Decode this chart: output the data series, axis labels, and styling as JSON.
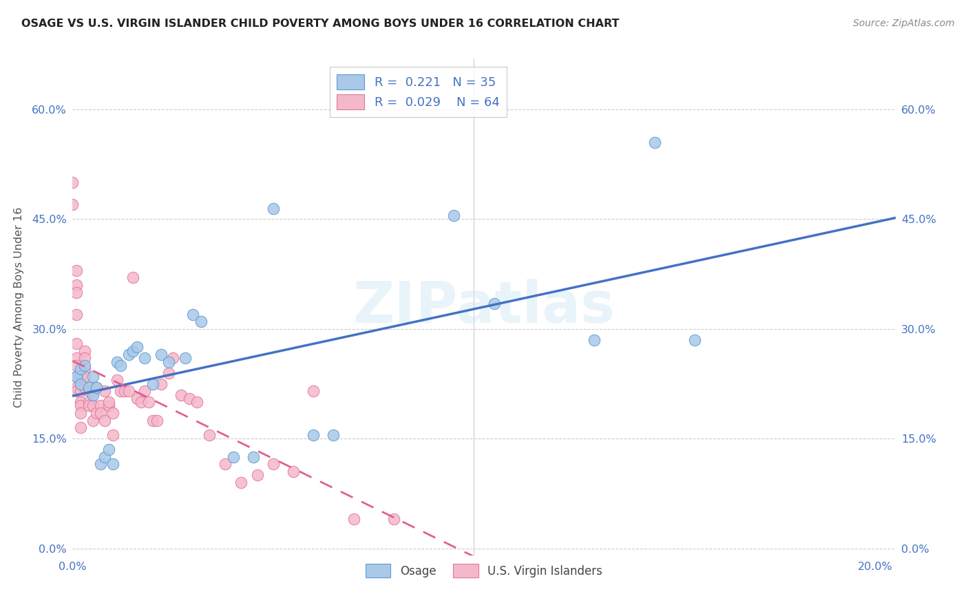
{
  "title": "OSAGE VS U.S. VIRGIN ISLANDER CHILD POVERTY AMONG BOYS UNDER 16 CORRELATION CHART",
  "source": "Source: ZipAtlas.com",
  "ylabel": "Child Poverty Among Boys Under 16",
  "xlim": [
    0.0,
    0.205
  ],
  "ylim": [
    -0.01,
    0.67
  ],
  "yticks": [
    0.0,
    0.15,
    0.3,
    0.45,
    0.6
  ],
  "ytick_labels": [
    "0.0%",
    "15.0%",
    "30.0%",
    "45.0%",
    "60.0%"
  ],
  "xtick_positions": [
    0.0,
    0.04,
    0.08,
    0.12,
    0.16,
    0.2
  ],
  "xtick_labels": [
    "0.0%",
    "",
    "",
    "",
    "",
    "20.0%"
  ],
  "legend_labels": [
    "Osage",
    "U.S. Virgin Islanders"
  ],
  "osage_R": "0.221",
  "osage_N": "35",
  "vi_R": "0.029",
  "vi_N": "64",
  "osage_fill": "#aac8e8",
  "vi_fill": "#f5b8cb",
  "osage_edge": "#5b9bd5",
  "vi_edge": "#e07898",
  "line_osage_color": "#4472c4",
  "line_vi_color": "#e06090",
  "grid_color": "#cccccc",
  "tick_color": "#4472c4",
  "spine_color": "#dddddd",
  "background": "#ffffff",
  "watermark": "ZIPatlas",
  "osage_x": [
    0.001,
    0.001,
    0.002,
    0.002,
    0.003,
    0.004,
    0.005,
    0.005,
    0.006,
    0.007,
    0.008,
    0.009,
    0.01,
    0.011,
    0.012,
    0.014,
    0.015,
    0.016,
    0.018,
    0.02,
    0.022,
    0.024,
    0.028,
    0.03,
    0.032,
    0.04,
    0.045,
    0.05,
    0.06,
    0.065,
    0.095,
    0.105,
    0.13,
    0.145,
    0.155
  ],
  "osage_y": [
    0.235,
    0.235,
    0.245,
    0.225,
    0.25,
    0.22,
    0.235,
    0.21,
    0.22,
    0.115,
    0.125,
    0.135,
    0.115,
    0.255,
    0.25,
    0.265,
    0.27,
    0.275,
    0.26,
    0.225,
    0.265,
    0.255,
    0.26,
    0.32,
    0.31,
    0.125,
    0.125,
    0.465,
    0.155,
    0.155,
    0.455,
    0.335,
    0.285,
    0.555,
    0.285
  ],
  "vi_x": [
    0.0,
    0.0,
    0.001,
    0.001,
    0.001,
    0.001,
    0.001,
    0.001,
    0.001,
    0.001,
    0.001,
    0.002,
    0.002,
    0.002,
    0.002,
    0.002,
    0.002,
    0.003,
    0.003,
    0.003,
    0.003,
    0.003,
    0.004,
    0.004,
    0.004,
    0.005,
    0.005,
    0.005,
    0.006,
    0.006,
    0.007,
    0.007,
    0.008,
    0.008,
    0.009,
    0.009,
    0.01,
    0.01,
    0.011,
    0.012,
    0.013,
    0.014,
    0.015,
    0.016,
    0.017,
    0.018,
    0.019,
    0.02,
    0.021,
    0.022,
    0.024,
    0.025,
    0.027,
    0.029,
    0.031,
    0.034,
    0.038,
    0.042,
    0.046,
    0.05,
    0.055,
    0.06,
    0.07,
    0.08
  ],
  "vi_y": [
    0.5,
    0.47,
    0.38,
    0.36,
    0.35,
    0.32,
    0.28,
    0.26,
    0.25,
    0.22,
    0.215,
    0.2,
    0.195,
    0.185,
    0.165,
    0.215,
    0.235,
    0.27,
    0.26,
    0.245,
    0.22,
    0.235,
    0.215,
    0.2,
    0.195,
    0.195,
    0.175,
    0.215,
    0.22,
    0.185,
    0.195,
    0.185,
    0.175,
    0.215,
    0.195,
    0.2,
    0.155,
    0.185,
    0.23,
    0.215,
    0.215,
    0.215,
    0.37,
    0.205,
    0.2,
    0.215,
    0.2,
    0.175,
    0.175,
    0.225,
    0.24,
    0.26,
    0.21,
    0.205,
    0.2,
    0.155,
    0.115,
    0.09,
    0.1,
    0.115,
    0.105,
    0.215,
    0.04,
    0.04
  ]
}
